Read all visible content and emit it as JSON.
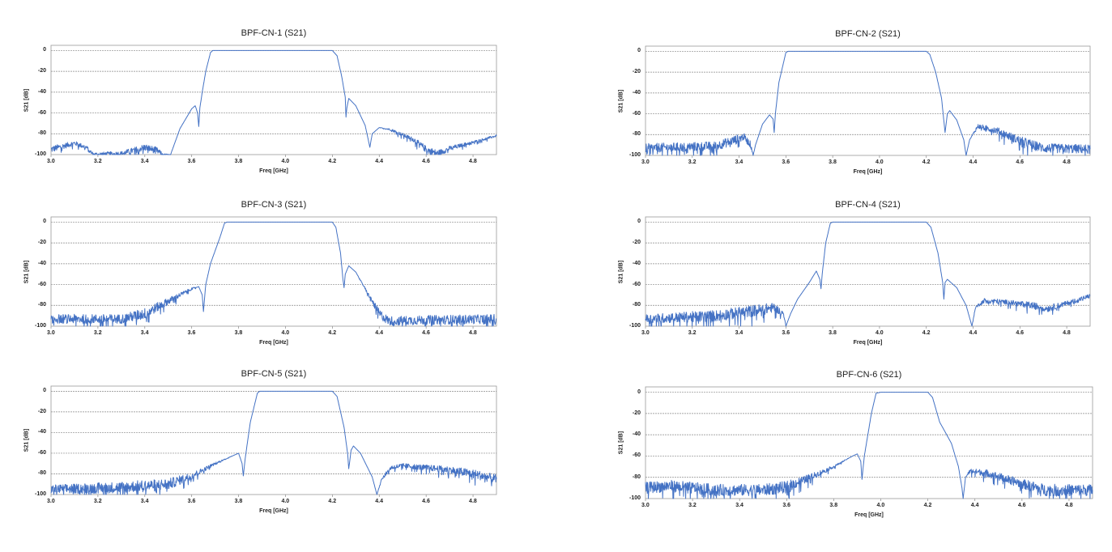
{
  "chart_data": [
    {
      "type": "line",
      "title": "BPF-CN-1 (S21)",
      "xlabel": "Freq [GHz]",
      "ylabel": "S21 [dB]",
      "xlim": [
        3.0,
        4.9
      ],
      "ylim": [
        -100,
        5
      ],
      "grid": "horizontal",
      "xticks": [
        "3.0",
        "3.2",
        "3.4",
        "3.6",
        "3.8",
        "4.0",
        "4.2",
        "4.4",
        "4.6",
        "4.8"
      ],
      "yticks": [
        "0",
        "-20",
        "-40",
        "-60",
        "-80",
        "-100"
      ],
      "color": "#4472C4",
      "points_note": "[freq GHz, S21 dB, noise amplitude dB]",
      "points": [
        [
          3.0,
          -95,
          3
        ],
        [
          3.1,
          -89,
          2
        ],
        [
          3.15,
          -93,
          2
        ],
        [
          3.18,
          -100,
          2
        ],
        [
          3.3,
          -99,
          2
        ],
        [
          3.4,
          -93,
          3
        ],
        [
          3.45,
          -96,
          3
        ],
        [
          3.48,
          -100,
          1
        ],
        [
          3.51,
          -100,
          0
        ],
        [
          3.55,
          -75,
          0
        ],
        [
          3.6,
          -56,
          0
        ],
        [
          3.615,
          -53,
          0
        ],
        [
          3.625,
          -60,
          0
        ],
        [
          3.63,
          -73,
          0
        ],
        [
          3.635,
          -55,
          0
        ],
        [
          3.645,
          -40,
          0
        ],
        [
          3.66,
          -20,
          0
        ],
        [
          3.68,
          -2,
          0
        ],
        [
          3.69,
          0,
          0
        ],
        [
          4.2,
          0,
          0
        ],
        [
          4.22,
          -5,
          0
        ],
        [
          4.24,
          -25,
          0
        ],
        [
          4.255,
          -45,
          0
        ],
        [
          4.258,
          -64,
          0
        ],
        [
          4.262,
          -55,
          0
        ],
        [
          4.27,
          -46,
          0
        ],
        [
          4.3,
          -53,
          0
        ],
        [
          4.34,
          -72,
          0
        ],
        [
          4.36,
          -93,
          0
        ],
        [
          4.37,
          -80,
          0
        ],
        [
          4.4,
          -74,
          0
        ],
        [
          4.45,
          -76,
          1
        ],
        [
          4.55,
          -86,
          2
        ],
        [
          4.6,
          -95,
          3
        ],
        [
          4.65,
          -99,
          3
        ],
        [
          4.7,
          -94,
          2
        ],
        [
          4.8,
          -88,
          1
        ],
        [
          4.9,
          -82,
          1
        ]
      ]
    },
    {
      "type": "line",
      "title": "BPF-CN-2 (S21)",
      "xlabel": "Freq [GHz]",
      "ylabel": "S21 [dB]",
      "xlim": [
        3.0,
        4.9
      ],
      "ylim": [
        -100,
        5
      ],
      "grid": "horizontal",
      "xticks": [
        "3.0",
        "3.2",
        "3.4",
        "3.6",
        "3.8",
        "4.0",
        "4.2",
        "4.4",
        "4.6",
        "4.8"
      ],
      "yticks": [
        "0",
        "-20",
        "-40",
        "-60",
        "-80",
        "-100"
      ],
      "color": "#4472C4",
      "points": [
        [
          3.0,
          -93,
          4
        ],
        [
          3.3,
          -91,
          4
        ],
        [
          3.4,
          -84,
          4
        ],
        [
          3.42,
          -82,
          3
        ],
        [
          3.45,
          -90,
          3
        ],
        [
          3.46,
          -100,
          0
        ],
        [
          3.47,
          -90,
          0
        ],
        [
          3.5,
          -70,
          0
        ],
        [
          3.53,
          -61,
          0
        ],
        [
          3.545,
          -65,
          0
        ],
        [
          3.55,
          -78,
          0
        ],
        [
          3.555,
          -60,
          0
        ],
        [
          3.57,
          -30,
          0
        ],
        [
          3.6,
          -1,
          0
        ],
        [
          3.61,
          0,
          0
        ],
        [
          4.2,
          0,
          0
        ],
        [
          4.215,
          -3,
          0
        ],
        [
          4.24,
          -20,
          0
        ],
        [
          4.265,
          -45,
          0
        ],
        [
          4.28,
          -78,
          0
        ],
        [
          4.29,
          -60,
          0
        ],
        [
          4.3,
          -57,
          0
        ],
        [
          4.33,
          -66,
          0
        ],
        [
          4.36,
          -85,
          0
        ],
        [
          4.37,
          -100,
          0
        ],
        [
          4.385,
          -85,
          0
        ],
        [
          4.42,
          -72,
          2
        ],
        [
          4.5,
          -76,
          3
        ],
        [
          4.6,
          -86,
          4
        ],
        [
          4.7,
          -93,
          4
        ],
        [
          4.9,
          -94,
          4
        ]
      ]
    },
    {
      "type": "line",
      "title": "BPF-CN-3 (S21)",
      "xlabel": "Freq [GHz]",
      "ylabel": "S21 [dB]",
      "xlim": [
        3.0,
        4.9
      ],
      "ylim": [
        -100,
        5
      ],
      "grid": "horizontal",
      "xticks": [
        "3.0",
        "3.2",
        "3.4",
        "3.6",
        "3.8",
        "4.0",
        "4.2",
        "4.4",
        "4.6",
        "4.8"
      ],
      "yticks": [
        "0",
        "-20",
        "-40",
        "-60",
        "-80",
        "-100"
      ],
      "color": "#4472C4",
      "points": [
        [
          3.0,
          -93,
          4
        ],
        [
          3.3,
          -93,
          4
        ],
        [
          3.4,
          -88,
          5
        ],
        [
          3.5,
          -76,
          3
        ],
        [
          3.6,
          -64,
          1
        ],
        [
          3.63,
          -62,
          0
        ],
        [
          3.645,
          -70,
          0
        ],
        [
          3.65,
          -86,
          0
        ],
        [
          3.66,
          -60,
          0
        ],
        [
          3.68,
          -40,
          0
        ],
        [
          3.72,
          -15,
          0
        ],
        [
          3.74,
          -1,
          0
        ],
        [
          3.75,
          0,
          0
        ],
        [
          4.2,
          0,
          0
        ],
        [
          4.215,
          -5,
          0
        ],
        [
          4.235,
          -30,
          0
        ],
        [
          4.245,
          -55,
          0
        ],
        [
          4.25,
          -63,
          0
        ],
        [
          4.255,
          -50,
          0
        ],
        [
          4.27,
          -42,
          0
        ],
        [
          4.3,
          -48,
          0
        ],
        [
          4.35,
          -68,
          1
        ],
        [
          4.4,
          -88,
          4
        ],
        [
          4.44,
          -95,
          4
        ],
        [
          4.6,
          -94,
          4
        ],
        [
          4.9,
          -93,
          4
        ]
      ]
    },
    {
      "type": "line",
      "title": "BPF-CN-4 (S21)",
      "xlabel": "Freq [GHz]",
      "ylabel": "S21 [dB]",
      "xlim": [
        3.0,
        4.9
      ],
      "ylim": [
        -100,
        5
      ],
      "grid": "horizontal",
      "xticks": [
        "3.0",
        "3.2",
        "3.4",
        "3.6",
        "3.8",
        "4.0",
        "4.2",
        "4.4",
        "4.6",
        "4.8"
      ],
      "yticks": [
        "0",
        "-20",
        "-40",
        "-60",
        "-80",
        "-100"
      ],
      "color": "#4472C4",
      "points": [
        [
          3.0,
          -93,
          4
        ],
        [
          3.3,
          -90,
          5
        ],
        [
          3.5,
          -84,
          5
        ],
        [
          3.55,
          -82,
          4
        ],
        [
          3.59,
          -88,
          2
        ],
        [
          3.6,
          -100,
          0
        ],
        [
          3.62,
          -88,
          0
        ],
        [
          3.65,
          -74,
          0
        ],
        [
          3.7,
          -58,
          0
        ],
        [
          3.73,
          -47,
          0
        ],
        [
          3.745,
          -55,
          0
        ],
        [
          3.75,
          -64,
          0
        ],
        [
          3.755,
          -50,
          0
        ],
        [
          3.77,
          -20,
          0
        ],
        [
          3.79,
          -1,
          0
        ],
        [
          3.8,
          0,
          0
        ],
        [
          4.2,
          0,
          0
        ],
        [
          4.22,
          -5,
          0
        ],
        [
          4.25,
          -30,
          0
        ],
        [
          4.27,
          -58,
          0
        ],
        [
          4.275,
          -74,
          0
        ],
        [
          4.28,
          -58,
          0
        ],
        [
          4.29,
          -55,
          0
        ],
        [
          4.33,
          -63,
          0
        ],
        [
          4.37,
          -80,
          0
        ],
        [
          4.395,
          -100,
          0
        ],
        [
          4.41,
          -82,
          1
        ],
        [
          4.45,
          -75,
          2
        ],
        [
          4.55,
          -77,
          2
        ],
        [
          4.65,
          -80,
          3
        ],
        [
          4.72,
          -83,
          3
        ],
        [
          4.8,
          -78,
          2
        ],
        [
          4.9,
          -71,
          2
        ]
      ]
    },
    {
      "type": "line",
      "title": "BPF-CN-5 (S21)",
      "xlabel": "Freq [GHz]",
      "ylabel": "S21 [dB]",
      "xlim": [
        3.0,
        4.9
      ],
      "ylim": [
        -100,
        5
      ],
      "grid": "horizontal",
      "xticks": [
        "3.0",
        "3.2",
        "3.4",
        "3.6",
        "3.8",
        "4.0",
        "4.2",
        "4.4",
        "4.6",
        "4.8"
      ],
      "yticks": [
        "0",
        "-20",
        "-40",
        "-60",
        "-80",
        "-100"
      ],
      "color": "#4472C4",
      "points": [
        [
          3.0,
          -95,
          4
        ],
        [
          3.3,
          -93,
          5
        ],
        [
          3.5,
          -90,
          5
        ],
        [
          3.6,
          -82,
          3
        ],
        [
          3.7,
          -70,
          1
        ],
        [
          3.78,
          -62,
          0
        ],
        [
          3.8,
          -60,
          0
        ],
        [
          3.815,
          -70,
          0
        ],
        [
          3.82,
          -82,
          0
        ],
        [
          3.83,
          -62,
          0
        ],
        [
          3.85,
          -30,
          0
        ],
        [
          3.88,
          -2,
          0
        ],
        [
          3.89,
          0,
          0
        ],
        [
          4.2,
          0,
          0
        ],
        [
          4.22,
          -5,
          0
        ],
        [
          4.25,
          -35,
          0
        ],
        [
          4.265,
          -60,
          0
        ],
        [
          4.27,
          -75,
          0
        ],
        [
          4.28,
          -57,
          0
        ],
        [
          4.29,
          -53,
          0
        ],
        [
          4.32,
          -60,
          0
        ],
        [
          4.37,
          -83,
          0
        ],
        [
          4.39,
          -100,
          0
        ],
        [
          4.41,
          -85,
          1
        ],
        [
          4.45,
          -74,
          2
        ],
        [
          4.5,
          -72,
          2
        ],
        [
          4.7,
          -76,
          3
        ],
        [
          4.8,
          -80,
          4
        ],
        [
          4.9,
          -85,
          4
        ]
      ]
    },
    {
      "type": "line",
      "title": "BPF-CN-6 (S21)",
      "xlabel": "Freq [GHz]",
      "ylabel": "S21 [dB]",
      "xlim": [
        3.0,
        4.9
      ],
      "ylim": [
        -100,
        5
      ],
      "grid": "horizontal",
      "xticks": [
        "3.0",
        "3.2",
        "3.4",
        "3.6",
        "3.8",
        "4.0",
        "4.2",
        "4.4",
        "4.6",
        "4.8"
      ],
      "yticks": [
        "0",
        "-20",
        "-40",
        "-60",
        "-80",
        "-100"
      ],
      "color": "#4472C4",
      "points": [
        [
          3.0,
          -90,
          5
        ],
        [
          3.1,
          -88,
          5
        ],
        [
          3.3,
          -92,
          5
        ],
        [
          3.5,
          -92,
          5
        ],
        [
          3.6,
          -89,
          5
        ],
        [
          3.7,
          -80,
          3
        ],
        [
          3.8,
          -70,
          1
        ],
        [
          3.88,
          -60,
          0
        ],
        [
          3.9,
          -58,
          0
        ],
        [
          3.915,
          -65,
          0
        ],
        [
          3.92,
          -82,
          0
        ],
        [
          3.93,
          -60,
          0
        ],
        [
          3.96,
          -20,
          0
        ],
        [
          3.98,
          -1,
          0
        ],
        [
          4.0,
          0,
          0
        ],
        [
          4.2,
          0,
          0
        ],
        [
          4.22,
          -5,
          0
        ],
        [
          4.25,
          -28,
          0
        ],
        [
          4.3,
          -48,
          0
        ],
        [
          4.33,
          -70,
          0
        ],
        [
          4.345,
          -90,
          0
        ],
        [
          4.35,
          -100,
          0
        ],
        [
          4.36,
          -80,
          0
        ],
        [
          4.38,
          -74,
          2
        ],
        [
          4.45,
          -76,
          3
        ],
        [
          4.6,
          -86,
          4
        ],
        [
          4.7,
          -92,
          5
        ],
        [
          4.9,
          -92,
          5
        ]
      ]
    }
  ]
}
